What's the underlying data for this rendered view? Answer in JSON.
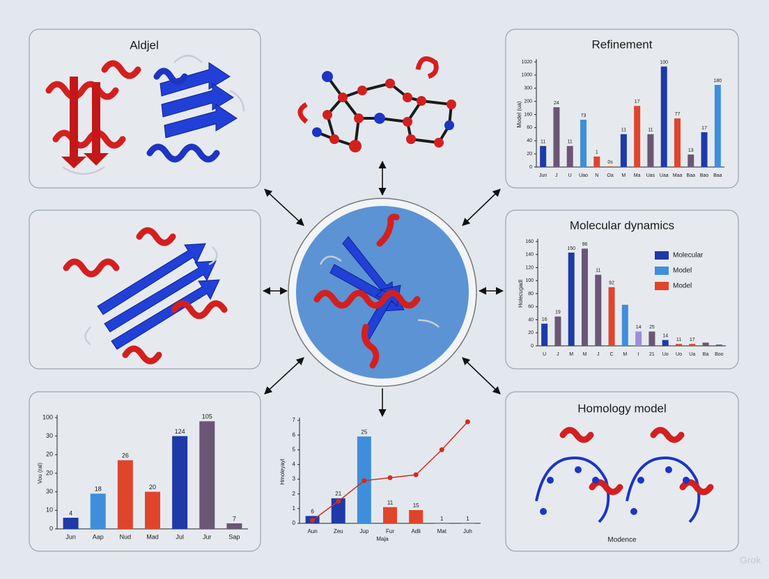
{
  "labels": {
    "top_left_title": "Aldjel",
    "homology_title": "Homology model",
    "homology_caption": "Modence",
    "watermark": "Grok"
  },
  "chart_data": [
    {
      "type": "bar",
      "title": "Refinement",
      "ylabel": "Model (ua)",
      "categories": [
        "Jun",
        "J",
        "U",
        "Uao",
        "N",
        "Oa",
        "M",
        "Ma",
        "Uas",
        "Uaa",
        "Maa",
        "Baa",
        "Bao",
        "Baa"
      ],
      "values": [
        32,
        91,
        32,
        72,
        16,
        1,
        50,
        93,
        50,
        153,
        74,
        19,
        53,
        125
      ],
      "colors": [
        "#1d3aa8",
        "#6b5675",
        "#6b5675",
        "#3f8edb",
        "#e0452c",
        "#e0452c",
        "#1d3aa8",
        "#e0452c",
        "#6b5675",
        "#1d3aa8",
        "#e0452c",
        "#6b5675",
        "#1d3aa8",
        "#3f8edb"
      ],
      "annotations": [
        "11",
        "24",
        "11",
        "73",
        "1",
        "0s",
        "11",
        "17",
        "11",
        "100",
        "77",
        "13",
        "17",
        "180"
      ],
      "ylim": [
        0,
        160
      ],
      "yticks": [
        0,
        20,
        40,
        60,
        {
          "value": 80,
          "label": "160"
        },
        {
          "value": 100,
          "label": "200"
        },
        {
          "value": 120,
          "label": "300"
        },
        {
          "value": 140,
          "label": "1000"
        },
        {
          "value": 160,
          "label": "1020"
        }
      ]
    },
    {
      "type": "bar",
      "title": "Molecular dynamics",
      "ylabel": "Holecugadl",
      "categories": [
        "U",
        "J",
        "M",
        "M",
        "J",
        "C",
        "M",
        "I",
        "21",
        "Uo",
        "Uo",
        "Ua",
        "Ba",
        "Boo"
      ],
      "values": [
        34,
        45,
        143,
        149,
        109,
        90,
        63,
        22,
        22,
        9,
        3,
        3,
        5,
        2
      ],
      "colors": [
        "#1d3aa8",
        "#6b5675",
        "#1d3aa8",
        "#6b5675",
        "#6b5675",
        "#e0452c",
        "#3f8edb",
        "#9a8fd8",
        "#6b5675",
        "#1d3aa8",
        "#e0452c",
        "#e0452c",
        "#6b5675",
        "#6b5675"
      ],
      "annotations": [
        "16",
        "19",
        "150",
        "96",
        "11",
        "92",
        "",
        "14",
        "25",
        "14",
        "11",
        "17",
        "",
        ""
      ],
      "legend": [
        {
          "name": "Molecular",
          "color": "#1d3aa8"
        },
        {
          "name": "Model",
          "color": "#3f8edb"
        },
        {
          "name": "Model",
          "color": "#e0452c"
        }
      ],
      "ylim": [
        0,
        160
      ],
      "yticks": [
        0,
        20,
        40,
        60,
        80,
        100,
        120,
        140,
        160
      ]
    },
    {
      "type": "bar",
      "ylabel": "Vou (ral)",
      "categories": [
        "Jun",
        "Aap",
        "Nud",
        "Mad",
        "Jul",
        "Jur",
        "Sap"
      ],
      "values": [
        6,
        19,
        37,
        20,
        50,
        58,
        3
      ],
      "colors": [
        "#1d3aa8",
        "#3f8edb",
        "#e0452c",
        "#e0452c",
        "#1d3aa8",
        "#6b5675",
        "#6b5675"
      ],
      "annotations": [
        "4",
        "18",
        "26",
        "20",
        "124",
        "105",
        "7"
      ],
      "ylim": [
        0,
        60
      ],
      "yticks": [
        0,
        10,
        {
          "value": 20,
          "label": "30"
        },
        {
          "value": 30,
          "label": "20"
        },
        {
          "value": 40,
          "label": "20"
        },
        {
          "value": 50,
          "label": "30"
        },
        {
          "value": 60,
          "label": "100"
        }
      ]
    },
    {
      "type": "bar",
      "ylabel": "Hmoleyayl",
      "xlabel": "Maja",
      "categories": [
        "Aun",
        "Zeu",
        "Jup",
        "Fur",
        "Adli",
        "Mat",
        "Juh"
      ],
      "values": [
        0.5,
        1.7,
        5.9,
        1.1,
        0.9,
        0,
        0
      ],
      "colors": [
        "#1d3aa8",
        "#1d3aa8",
        "#3f8edb",
        "#e0452c",
        "#e0452c",
        "#6b5675",
        "#6b5675"
      ],
      "annotations": [
        "6",
        "21",
        "25",
        "11",
        "15",
        "1",
        "1"
      ],
      "line_values": [
        0.2,
        1.5,
        2.9,
        3.1,
        3.3,
        5.0,
        6.9
      ],
      "line_color": "#d42a1e",
      "ylim": [
        0,
        7
      ],
      "yticks": [
        0,
        1,
        2,
        3,
        4,
        5,
        6,
        7
      ]
    }
  ]
}
